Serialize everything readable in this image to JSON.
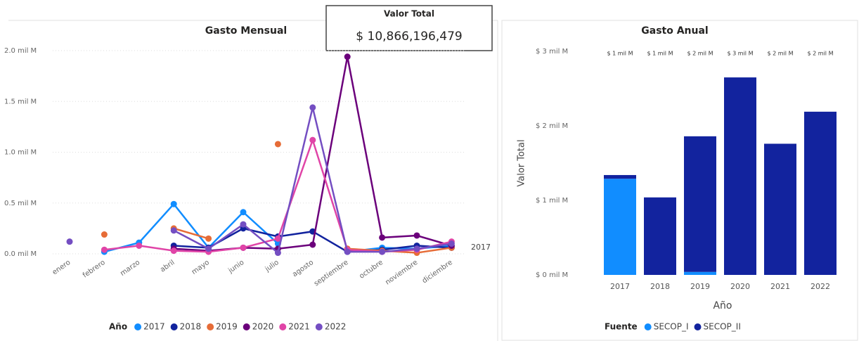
{
  "card": {
    "title": "Valor Total",
    "value": "$ 10,866,196,479"
  },
  "chart_data": [
    {
      "type": "line",
      "title": "Gasto Mensual",
      "categories": [
        "enero",
        "febrero",
        "marzo",
        "abril",
        "mayo",
        "junio",
        "julio",
        "agosto",
        "septiembre",
        "octubre",
        "noviembre",
        "diciembre"
      ],
      "ylim": [
        0,
        2
      ],
      "yticks": [
        {
          "value": 0,
          "label": "0.0 mil M"
        },
        {
          "value": 0.5,
          "label": "0.5 mil M"
        },
        {
          "value": 1,
          "label": "1.0 mil M"
        },
        {
          "value": 1.5,
          "label": "1.5 mil M"
        },
        {
          "value": 2,
          "label": "2.0 mil M"
        }
      ],
      "grid": true,
      "legend_title": "Año",
      "annotation": "2017",
      "series": [
        {
          "name": "2017",
          "color": "#118DFF",
          "values": [
            null,
            0.02,
            0.11,
            0.49,
            0.06,
            0.41,
            0.1,
            null,
            0.02,
            0.06,
            0.05,
            0.08
          ]
        },
        {
          "name": "2018",
          "color": "#12239E",
          "values": [
            null,
            null,
            null,
            0.08,
            0.06,
            0.25,
            0.17,
            0.22,
            0.02,
            0.04,
            0.08,
            0.06
          ]
        },
        {
          "name": "2019",
          "color": "#E66C37",
          "values": [
            null,
            0.19,
            null,
            0.25,
            0.15,
            null,
            1.08,
            null,
            0.05,
            0.03,
            0.01,
            0.06
          ]
        },
        {
          "name": "2020",
          "color": "#6B007B",
          "values": [
            null,
            null,
            null,
            0.05,
            0.03,
            0.06,
            0.05,
            0.09,
            1.94,
            0.16,
            0.18,
            0.08
          ]
        },
        {
          "name": "2021",
          "color": "#E044A7",
          "values": [
            null,
            0.04,
            0.08,
            0.03,
            0.02,
            0.06,
            0.15,
            1.12,
            0.04,
            0.02,
            0.04,
            0.12
          ]
        },
        {
          "name": "2022",
          "color": "#744EC2",
          "values": [
            0.12,
            null,
            null,
            0.23,
            0.05,
            0.29,
            0.01,
            1.44,
            0.02,
            0.02,
            0.05,
            0.1
          ]
        }
      ]
    },
    {
      "type": "stacked_bar",
      "title": "Gasto Anual",
      "categories": [
        "2017",
        "2018",
        "2019",
        "2020",
        "2021",
        "2022"
      ],
      "xlabel": "Año",
      "ylabel": "Valor Total",
      "ylim": [
        0,
        3
      ],
      "yticks": [
        {
          "value": 0,
          "label": "$ 0 mil M"
        },
        {
          "value": 1,
          "label": "$ 1 mil M"
        },
        {
          "value": 2,
          "label": "$ 2 mil M"
        },
        {
          "value": 3,
          "label": "$ 3 mil M"
        }
      ],
      "total_labels": [
        "$ 1 mil M",
        "$ 1 mil M",
        "$ 2 mil M",
        "$ 3 mil M",
        "$ 2 mil M",
        "$ 2 mil M"
      ],
      "legend_title": "Fuente",
      "series": [
        {
          "name": "SECOP_I",
          "color": "#118DFF",
          "values": [
            1.29,
            0,
            0.04,
            0,
            0,
            0
          ]
        },
        {
          "name": "SECOP_II",
          "color": "#12239E",
          "values": [
            0.05,
            1.04,
            1.82,
            2.65,
            1.76,
            2.19
          ]
        }
      ]
    }
  ]
}
